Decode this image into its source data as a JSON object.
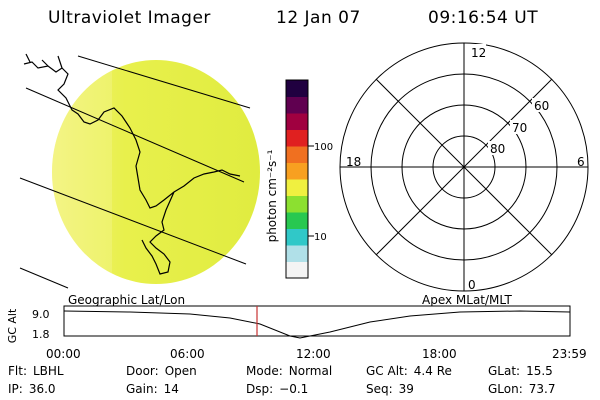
{
  "header": {
    "title": "Ultraviolet Imager",
    "date": "12 Jan 07",
    "time": "09:16:54 UT"
  },
  "colorbar": {
    "unit_label": "photon cm⁻²s⁻¹",
    "ticks": [
      "100",
      "10"
    ]
  },
  "polar": {
    "mlt_labels": {
      "top": "12",
      "left": "18",
      "right": "6",
      "bottom": "0"
    },
    "lat_labels": [
      "60",
      "70",
      "80"
    ]
  },
  "timeline": {
    "left_title": "Geographic Lat/Lon",
    "right_title": "Apex MLat/MLT",
    "y_axis_label": "GC Alt",
    "y_ticks": [
      "9.0",
      "1.8"
    ],
    "x_ticks": [
      "00:00",
      "06:00",
      "12:00",
      "18:00",
      "23:59"
    ],
    "marker_time": "09:16:54"
  },
  "info": {
    "row1": [
      {
        "label": "Flt:",
        "value": "LBHL"
      },
      {
        "label": "Door:",
        "value": "Open"
      },
      {
        "label": "Mode:",
        "value": "Normal"
      },
      {
        "label": "GC Alt:",
        "value": "4.4 Re"
      },
      {
        "label": "GLat:",
        "value": "15.5"
      }
    ],
    "row2": [
      {
        "label": "IP:",
        "value": "36.0"
      },
      {
        "label": "Gain:",
        "value": "14"
      },
      {
        "label": "Dsp:",
        "value": "−0.1"
      },
      {
        "label": "Seq:",
        "value": "39"
      },
      {
        "label": "GLon:",
        "value": "73.7"
      }
    ]
  },
  "colors": {
    "disk": "#e6f04a",
    "disk_light": "#f2f37a",
    "marker": "#c83232",
    "colorbar_stops": [
      "#f4f4f4",
      "#b0e0e8",
      "#30c8c8",
      "#28c850",
      "#8ce030",
      "#f0f040",
      "#f8a020",
      "#f07020",
      "#e02020",
      "#a00040",
      "#600050",
      "#200040"
    ]
  }
}
